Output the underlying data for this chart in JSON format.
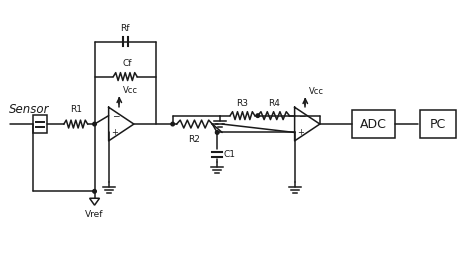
{
  "bg_color": "#ffffff",
  "line_color": "#1a1a1a",
  "text_color": "#1a1a1a",
  "fig_width": 4.74,
  "fig_height": 2.59,
  "dpi": 100,
  "labels": {
    "sensor": "Sensor",
    "R1": "R1",
    "Rf": "Rf",
    "Cf": "Cf",
    "Vcc1": "Vcc",
    "Vref": "Vref",
    "R2": "R2",
    "R3": "R3",
    "R4": "R4",
    "Vcc2": "Vcc",
    "C1": "C1",
    "ADC": "ADC",
    "PC": "PC"
  }
}
